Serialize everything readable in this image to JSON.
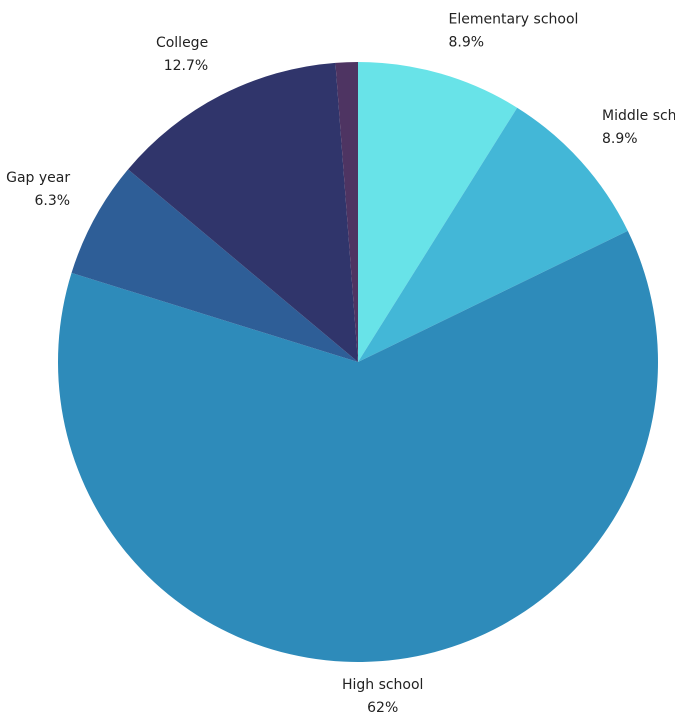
{
  "chart_data": {
    "type": "pie",
    "title": "",
    "slices": [
      {
        "label": "Elementary school",
        "value": 8.9,
        "value_label": "8.9%",
        "color": "#68e3e8"
      },
      {
        "label": "Middle school",
        "value": 8.9,
        "value_label": "8.9%",
        "color": "#43b7d7"
      },
      {
        "label": "High school",
        "value": 62,
        "value_label": "62%",
        "color": "#2e8bba"
      },
      {
        "label": "Gap year",
        "value": 6.3,
        "value_label": "6.3%",
        "color": "#2e5e97"
      },
      {
        "label": "College",
        "value": 12.7,
        "value_label": "12.7%",
        "color": "#30356b"
      },
      {
        "label": "",
        "value": 1.2,
        "value_label": "",
        "color": "#4e3462"
      }
    ],
    "start": "top (12 o'clock)",
    "direction": "clockwise",
    "legend": "none"
  }
}
